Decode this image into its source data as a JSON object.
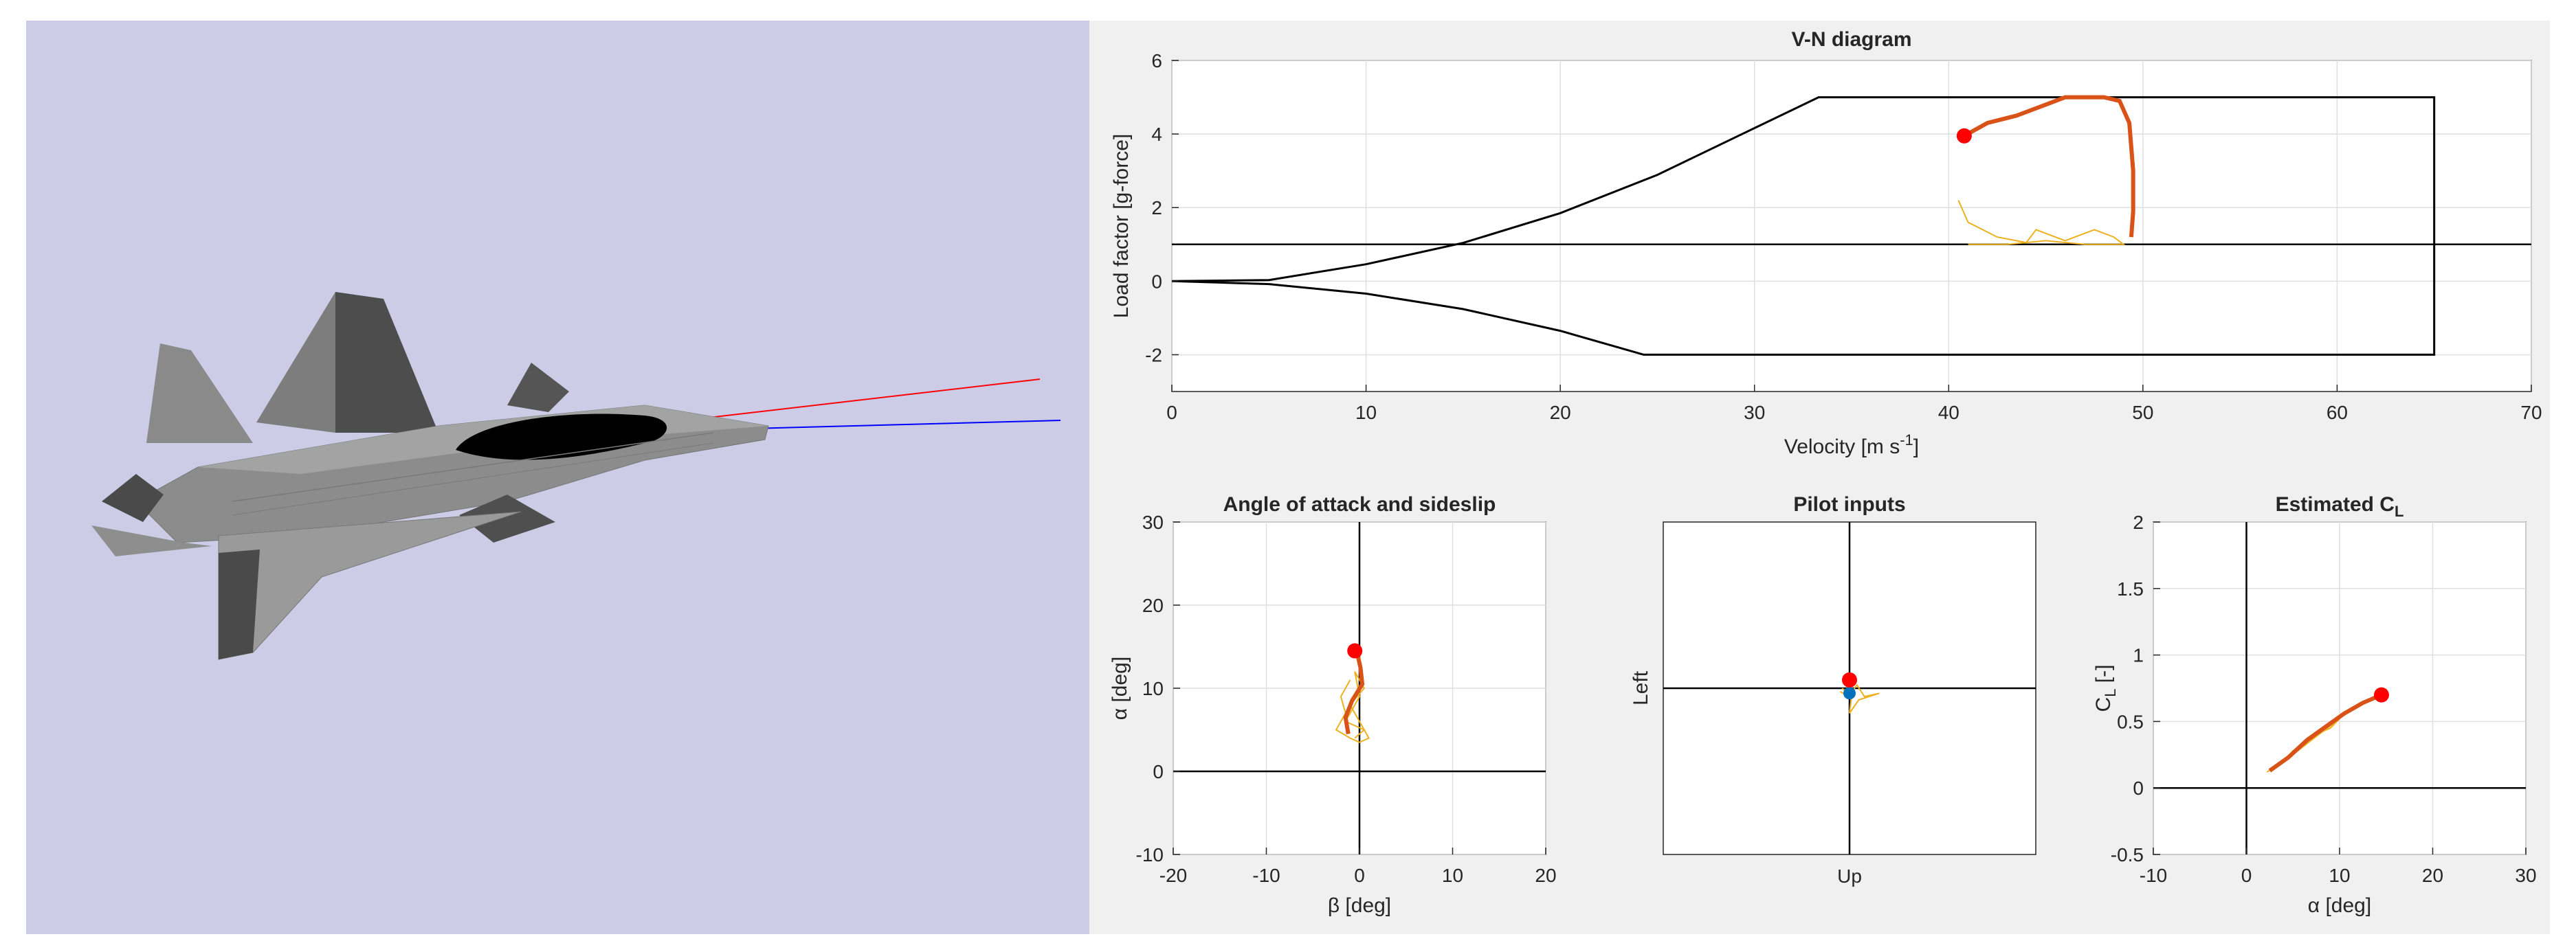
{
  "scene": {
    "aircraft_icon": "fighter-jet-3d-model",
    "colors": {
      "background": "#cccce6",
      "body": "#8c8c8c",
      "canopy": "#000000",
      "velocity_vector": "#ff0000",
      "body_axis": "#0000ff"
    }
  },
  "colors": {
    "history": "#edb120",
    "trajectory": "#d95319",
    "marker": "#ff0000",
    "marker_secondary": "#0072bd",
    "envelope": "#000000"
  },
  "chart_data": [
    {
      "id": "vn",
      "type": "line",
      "title": "V-N diagram",
      "xlabel": "Velocity [m s",
      "xlabel_sup": "-1",
      "xlabel_tail": "]",
      "ylabel": "Load factor [g-force]",
      "xlim": [
        0,
        70
      ],
      "ylim": [
        -3,
        6
      ],
      "xticks": [
        0,
        10,
        20,
        30,
        40,
        50,
        60,
        70
      ],
      "yticks": [
        -2,
        0,
        2,
        4,
        6
      ],
      "grid": true,
      "reference_lines": [
        {
          "axis": "y",
          "value": 1
        }
      ],
      "envelope": [
        [
          0,
          0
        ],
        [
          5,
          0.03
        ],
        [
          10,
          0.46
        ],
        [
          15,
          1.04
        ],
        [
          20,
          1.85
        ],
        [
          25,
          2.89
        ],
        [
          30,
          4.16
        ],
        [
          33.3,
          5.0
        ],
        [
          65,
          5.0
        ],
        [
          65,
          -2.0
        ],
        [
          24.3,
          -2.0
        ],
        [
          20,
          -1.35
        ],
        [
          15,
          -0.76
        ],
        [
          10,
          -0.34
        ],
        [
          5,
          -0.08
        ],
        [
          0,
          0
        ]
      ],
      "history": [
        [
          40.5,
          2.2
        ],
        [
          41.0,
          1.6
        ],
        [
          42.5,
          1.2
        ],
        [
          44.0,
          1.05
        ],
        [
          44.5,
          1.4
        ],
        [
          46.0,
          1.1
        ],
        [
          47.5,
          1.4
        ],
        [
          48.5,
          1.2
        ],
        [
          49.0,
          1.0
        ],
        [
          47.0,
          1.0
        ],
        [
          45.0,
          1.1
        ],
        [
          43.0,
          1.0
        ],
        [
          41.0,
          1.0
        ]
      ],
      "trajectory": [
        [
          40.8,
          3.95
        ],
        [
          42.0,
          4.3
        ],
        [
          43.5,
          4.5
        ],
        [
          45.0,
          4.8
        ],
        [
          46.0,
          5.0
        ],
        [
          48.0,
          5.0
        ],
        [
          48.8,
          4.9
        ],
        [
          49.3,
          4.3
        ],
        [
          49.5,
          3.0
        ],
        [
          49.5,
          1.9
        ],
        [
          49.4,
          1.2
        ]
      ],
      "current": [
        40.8,
        3.95
      ]
    },
    {
      "id": "aoa",
      "type": "line",
      "title": "Angle of attack and sideslip",
      "xlabel": "β [deg]",
      "ylabel": "α [deg]",
      "xlim": [
        -20,
        20
      ],
      "ylim": [
        -10,
        30
      ],
      "xticks": [
        -20,
        -10,
        0,
        10,
        20
      ],
      "yticks": [
        -10,
        0,
        10,
        20,
        30
      ],
      "grid": true,
      "reference_lines": [
        {
          "axis": "x",
          "value": 0
        },
        {
          "axis": "y",
          "value": 0
        }
      ],
      "history": [
        [
          -1,
          11
        ],
        [
          -2,
          9
        ],
        [
          -1.5,
          7
        ],
        [
          -2.5,
          5
        ],
        [
          -1,
          4
        ],
        [
          0,
          3.5
        ],
        [
          1,
          4
        ],
        [
          0,
          6
        ],
        [
          -1,
          8
        ],
        [
          0.5,
          10
        ],
        [
          -0.5,
          12
        ],
        [
          0,
          9
        ],
        [
          -1.5,
          6
        ],
        [
          0.5,
          5
        ],
        [
          -0.5,
          4
        ]
      ],
      "trajectory": [
        [
          -1.2,
          4.5
        ],
        [
          -1.5,
          6.5
        ],
        [
          -0.8,
          8.5
        ],
        [
          0.3,
          10.5
        ],
        [
          0.1,
          12.5
        ],
        [
          -0.3,
          14.5
        ]
      ],
      "current": [
        -0.5,
        14.5
      ]
    },
    {
      "id": "pilot",
      "type": "line",
      "title": "Pilot inputs",
      "xlabel": "Up",
      "ylabel": "Left",
      "xlim": [
        -1,
        1
      ],
      "ylim": [
        -1,
        1
      ],
      "grid": false,
      "reference_lines": [
        {
          "axis": "x",
          "value": 0
        },
        {
          "axis": "y",
          "value": 0
        }
      ],
      "history": [
        [
          -0.04,
          0.0
        ],
        [
          0.0,
          -0.04
        ],
        [
          0.04,
          0.02
        ],
        [
          0.08,
          -0.05
        ],
        [
          0.16,
          -0.03
        ],
        [
          0.05,
          -0.07
        ],
        [
          0.0,
          -0.15
        ],
        [
          0.01,
          -0.06
        ],
        [
          -0.05,
          -0.02
        ]
      ],
      "current": [
        0.0,
        0.05
      ],
      "current_secondary": [
        0.0,
        -0.03
      ]
    },
    {
      "id": "cl",
      "type": "line",
      "title": "Estimated C",
      "title_sub": "L",
      "xlabel": "α [deg]",
      "ylabel": "C",
      "ylabel_sub": "L",
      "ylabel_tail": " [-]",
      "xlim": [
        -10,
        30
      ],
      "ylim": [
        -0.5,
        2
      ],
      "xticks": [
        -10,
        0,
        10,
        20,
        30
      ],
      "yticks": [
        -0.5,
        0,
        0.5,
        1,
        1.5,
        2
      ],
      "grid": true,
      "reference_lines": [
        {
          "axis": "x",
          "value": 0
        },
        {
          "axis": "y",
          "value": 0
        }
      ],
      "history": [
        [
          2.2,
          0.12
        ],
        [
          4,
          0.2
        ],
        [
          5,
          0.28
        ],
        [
          6,
          0.32
        ],
        [
          8,
          0.42
        ],
        [
          9,
          0.45
        ],
        [
          10,
          0.52
        ],
        [
          7,
          0.36
        ],
        [
          3.5,
          0.17
        ]
      ],
      "trajectory": [
        [
          2.5,
          0.13
        ],
        [
          4.5,
          0.23
        ],
        [
          6.5,
          0.36
        ],
        [
          8.5,
          0.46
        ],
        [
          10.5,
          0.56
        ],
        [
          12.5,
          0.64
        ],
        [
          14.5,
          0.7
        ]
      ],
      "current": [
        14.5,
        0.7
      ]
    }
  ]
}
